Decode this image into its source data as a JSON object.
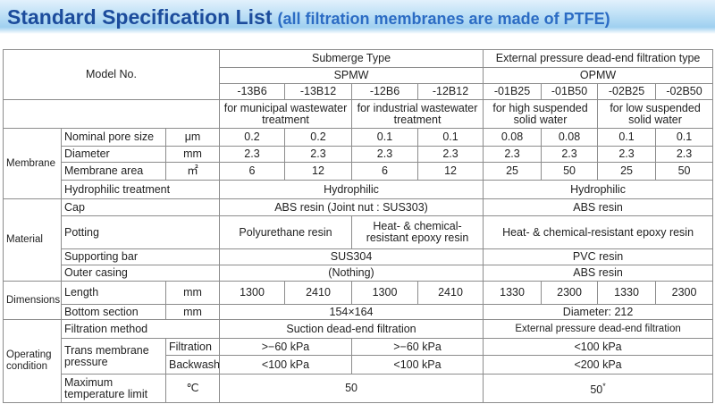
{
  "header": {
    "title": "Standard Specification List",
    "subtitle": "(all filtration membranes are made of PTFE)"
  },
  "table": {
    "model_no": "Model No.",
    "types": [
      "Submerge Type",
      "External pressure dead-end filtration type"
    ],
    "series": [
      "SPMW",
      "OPMW"
    ],
    "models": [
      "-13B6",
      "-13B12",
      "-12B6",
      "-12B12",
      "-01B25",
      "-01B50",
      "-02B25",
      "-02B50"
    ],
    "applications": [
      "for municipal wastewater treatment",
      "for industrial wastewater treatment",
      "for high suspended solid water",
      "for low suspended solid water"
    ],
    "membrane": {
      "label": "Membrane",
      "pore": {
        "item": "Nominal pore size",
        "unit": "μm",
        "values": [
          0.2,
          0.2,
          0.1,
          0.1,
          0.08,
          0.08,
          0.1,
          0.1
        ]
      },
      "diameter": {
        "item": "Diameter",
        "unit": "mm",
        "values": [
          2.3,
          2.3,
          2.3,
          2.3,
          2.3,
          2.3,
          2.3,
          2.3
        ]
      },
      "area": {
        "item": "Membrane area",
        "unit": "㎡",
        "values": [
          6,
          12,
          6,
          12,
          25,
          50,
          25,
          50
        ]
      },
      "hydrophilic": {
        "item": "Hydrophilic treatment",
        "values": [
          "Hydrophilic",
          "Hydrophilic"
        ]
      }
    },
    "material": {
      "label": "Material",
      "cap": {
        "item": "Cap",
        "values": [
          "ABS resin (Joint nut : SUS303)",
          "ABS resin"
        ]
      },
      "potting": {
        "item": "Potting",
        "values": [
          "Polyurethane resin",
          "Heat- & chemical-resistant epoxy resin",
          "Heat- & chemical-resistant epoxy resin"
        ]
      },
      "supporting_bar": {
        "item": "Supporting bar",
        "values": [
          "SUS304",
          "PVC resin"
        ]
      },
      "outer_casing": {
        "item": "Outer casing",
        "values": [
          "(Nothing)",
          "ABS resin"
        ]
      }
    },
    "dimensions": {
      "label": "Dimensions",
      "length": {
        "item": "Length",
        "unit": "mm",
        "values": [
          1300,
          2410,
          1300,
          2410,
          1330,
          2300,
          1330,
          2300
        ]
      },
      "bottom": {
        "item": "Bottom section",
        "unit": "mm",
        "values": [
          "154×164",
          "Diameter: 212"
        ]
      }
    },
    "operating": {
      "label": "Operating condition",
      "method": {
        "item": "Filtration method",
        "values": [
          "Suction dead-end filtration",
          "External pressure dead-end filtration"
        ]
      },
      "pressure": {
        "item": "Trans membrane pressure",
        "filtration": {
          "label": "Filtration",
          "values": [
            ">−60 kPa",
            ">−60 kPa",
            "<100 kPa"
          ]
        },
        "backwash": {
          "label": "Backwash",
          "values": [
            "<100 kPa",
            "<100 kPa",
            "<200 kPa"
          ]
        }
      },
      "max_temp": {
        "item": "Maximum temperature limit",
        "unit": "℃",
        "values": [
          50,
          50
        ],
        "footnote": "*"
      }
    }
  }
}
